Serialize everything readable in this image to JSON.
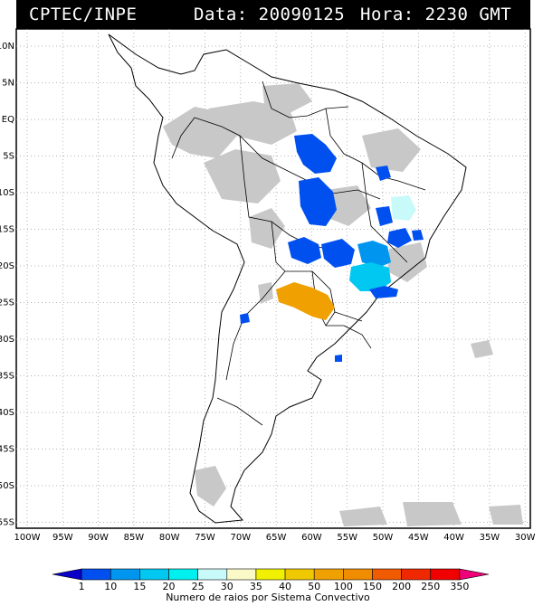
{
  "header": {
    "source": "CPTEC/INPE",
    "date": "Data: 20090125",
    "hour": "Hora: 2230 GMT"
  },
  "lat_labels": [
    "10N",
    "5N",
    "EQ",
    "5S",
    "10S",
    "15S",
    "20S",
    "25S",
    "30S",
    "35S",
    "40S",
    "45S",
    "50S",
    "55S"
  ],
  "lon_labels": [
    "100W",
    "95W",
    "90W",
    "85W",
    "80W",
    "75W",
    "70W",
    "65W",
    "60W",
    "55W",
    "50W",
    "45W",
    "40W",
    "35W",
    "30W"
  ],
  "legend": {
    "title": "Numero de raios por Sistema Convectivo",
    "values": [
      "1",
      "10",
      "15",
      "20",
      "25",
      "30",
      "35",
      "40",
      "50",
      "100",
      "150",
      "200",
      "250",
      "350"
    ],
    "colors": [
      "#0a00c8",
      "#0050f0",
      "#0096f0",
      "#00c8f0",
      "#00f0f0",
      "#c8fafa",
      "#fafac8",
      "#f0f000",
      "#f0c800",
      "#f0a000",
      "#f08c00",
      "#f05a00",
      "#f02800",
      "#f00000",
      "#f00078"
    ]
  },
  "colors": {
    "cloud_gray": "#c8c8c8",
    "border": "#000000",
    "grid": "#9a9a9a"
  }
}
